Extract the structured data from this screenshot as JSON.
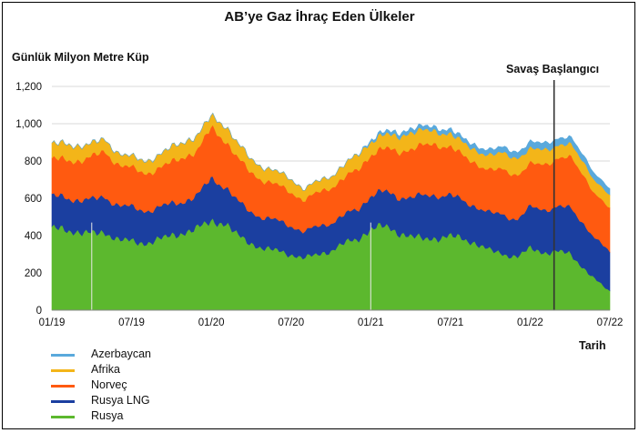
{
  "chart_data": {
    "type": "area",
    "stacked": true,
    "title": "AB’ye Gaz İhraç Eden Ülkeler",
    "ylabel": "Günlük Milyon Metre Küp",
    "xlabel": "Tarih",
    "ylim": [
      0,
      1200
    ],
    "yticks": [
      0,
      200,
      400,
      600,
      800,
      1000,
      1200
    ],
    "ytick_labels": [
      "0",
      "200",
      "400",
      "600",
      "800",
      "1,000",
      "1,200"
    ],
    "xtick_labels": [
      "01/19",
      "07/19",
      "01/20",
      "07/20",
      "01/21",
      "07/21",
      "01/22",
      "07/22"
    ],
    "x_months": [
      "01/19",
      "02/19",
      "03/19",
      "04/19",
      "05/19",
      "06/19",
      "07/19",
      "08/19",
      "09/19",
      "10/19",
      "11/19",
      "12/19",
      "01/20",
      "02/20",
      "03/20",
      "04/20",
      "05/20",
      "06/20",
      "07/20",
      "08/20",
      "09/20",
      "10/20",
      "11/20",
      "12/20",
      "01/21",
      "02/21",
      "03/21",
      "04/21",
      "05/21",
      "06/21",
      "07/21",
      "08/21",
      "09/21",
      "10/21",
      "11/21",
      "12/21",
      "01/22",
      "02/22",
      "03/22",
      "04/22",
      "05/22",
      "06/22",
      "07/22"
    ],
    "annotation": {
      "label": "Savaş Başlangıcı",
      "x_month_index": 37.8
    },
    "series": [
      {
        "name": "Rusya",
        "color": "#5cb82e",
        "values": [
          440,
          435,
          420,
          410,
          420,
          380,
          370,
          360,
          380,
          400,
          420,
          440,
          480,
          470,
          400,
          360,
          330,
          320,
          300,
          280,
          300,
          320,
          360,
          380,
          440,
          450,
          420,
          400,
          380,
          390,
          400,
          380,
          360,
          320,
          300,
          290,
          330,
          310,
          320,
          300,
          230,
          160,
          100
        ]
      },
      {
        "name": "Rusya LNG",
        "color": "#1b3fa0",
        "values": [
          170,
          170,
          175,
          180,
          190,
          185,
          180,
          175,
          170,
          170,
          170,
          175,
          230,
          200,
          180,
          170,
          165,
          160,
          155,
          140,
          150,
          150,
          150,
          160,
          180,
          185,
          190,
          210,
          230,
          230,
          220,
          200,
          200,
          200,
          210,
          200,
          220,
          230,
          240,
          245,
          240,
          220,
          210
        ]
      },
      {
        "name": "Norveç",
        "color": "#ff5a10",
        "values": [
          200,
          200,
          210,
          230,
          240,
          220,
          210,
          200,
          210,
          220,
          240,
          240,
          270,
          250,
          230,
          210,
          200,
          190,
          180,
          170,
          180,
          190,
          200,
          210,
          220,
          230,
          240,
          260,
          270,
          270,
          260,
          240,
          230,
          230,
          240,
          240,
          230,
          240,
          260,
          270,
          260,
          240,
          230
        ]
      },
      {
        "name": "Afrika",
        "color": "#f3b519",
        "values": [
          80,
          85,
          80,
          70,
          65,
          60,
          60,
          65,
          70,
          80,
          80,
          80,
          60,
          80,
          80,
          70,
          70,
          70,
          70,
          60,
          60,
          60,
          70,
          80,
          70,
          75,
          80,
          90,
          80,
          70,
          70,
          70,
          70,
          80,
          90,
          90,
          80,
          80,
          70,
          70,
          70,
          70,
          70
        ]
      },
      {
        "name": "Azerbaycan",
        "color": "#5aa9dc",
        "values": [
          0,
          0,
          0,
          0,
          0,
          0,
          0,
          0,
          0,
          0,
          0,
          0,
          0,
          0,
          0,
          0,
          0,
          0,
          0,
          0,
          0,
          0,
          0,
          0,
          10,
          15,
          18,
          20,
          20,
          20,
          22,
          22,
          25,
          28,
          30,
          32,
          35,
          35,
          35,
          35,
          35,
          35,
          35
        ]
      }
    ],
    "legend": [
      {
        "name": "Azerbaycan",
        "color": "#5aa9dc"
      },
      {
        "name": "Afrika",
        "color": "#f3b519"
      },
      {
        "name": "Norveç",
        "color": "#ff5a10"
      },
      {
        "name": "Rusya LNG",
        "color": "#1b3fa0"
      },
      {
        "name": "Rusya",
        "color": "#5cb82e"
      }
    ],
    "legend_position": "bottom-left"
  }
}
